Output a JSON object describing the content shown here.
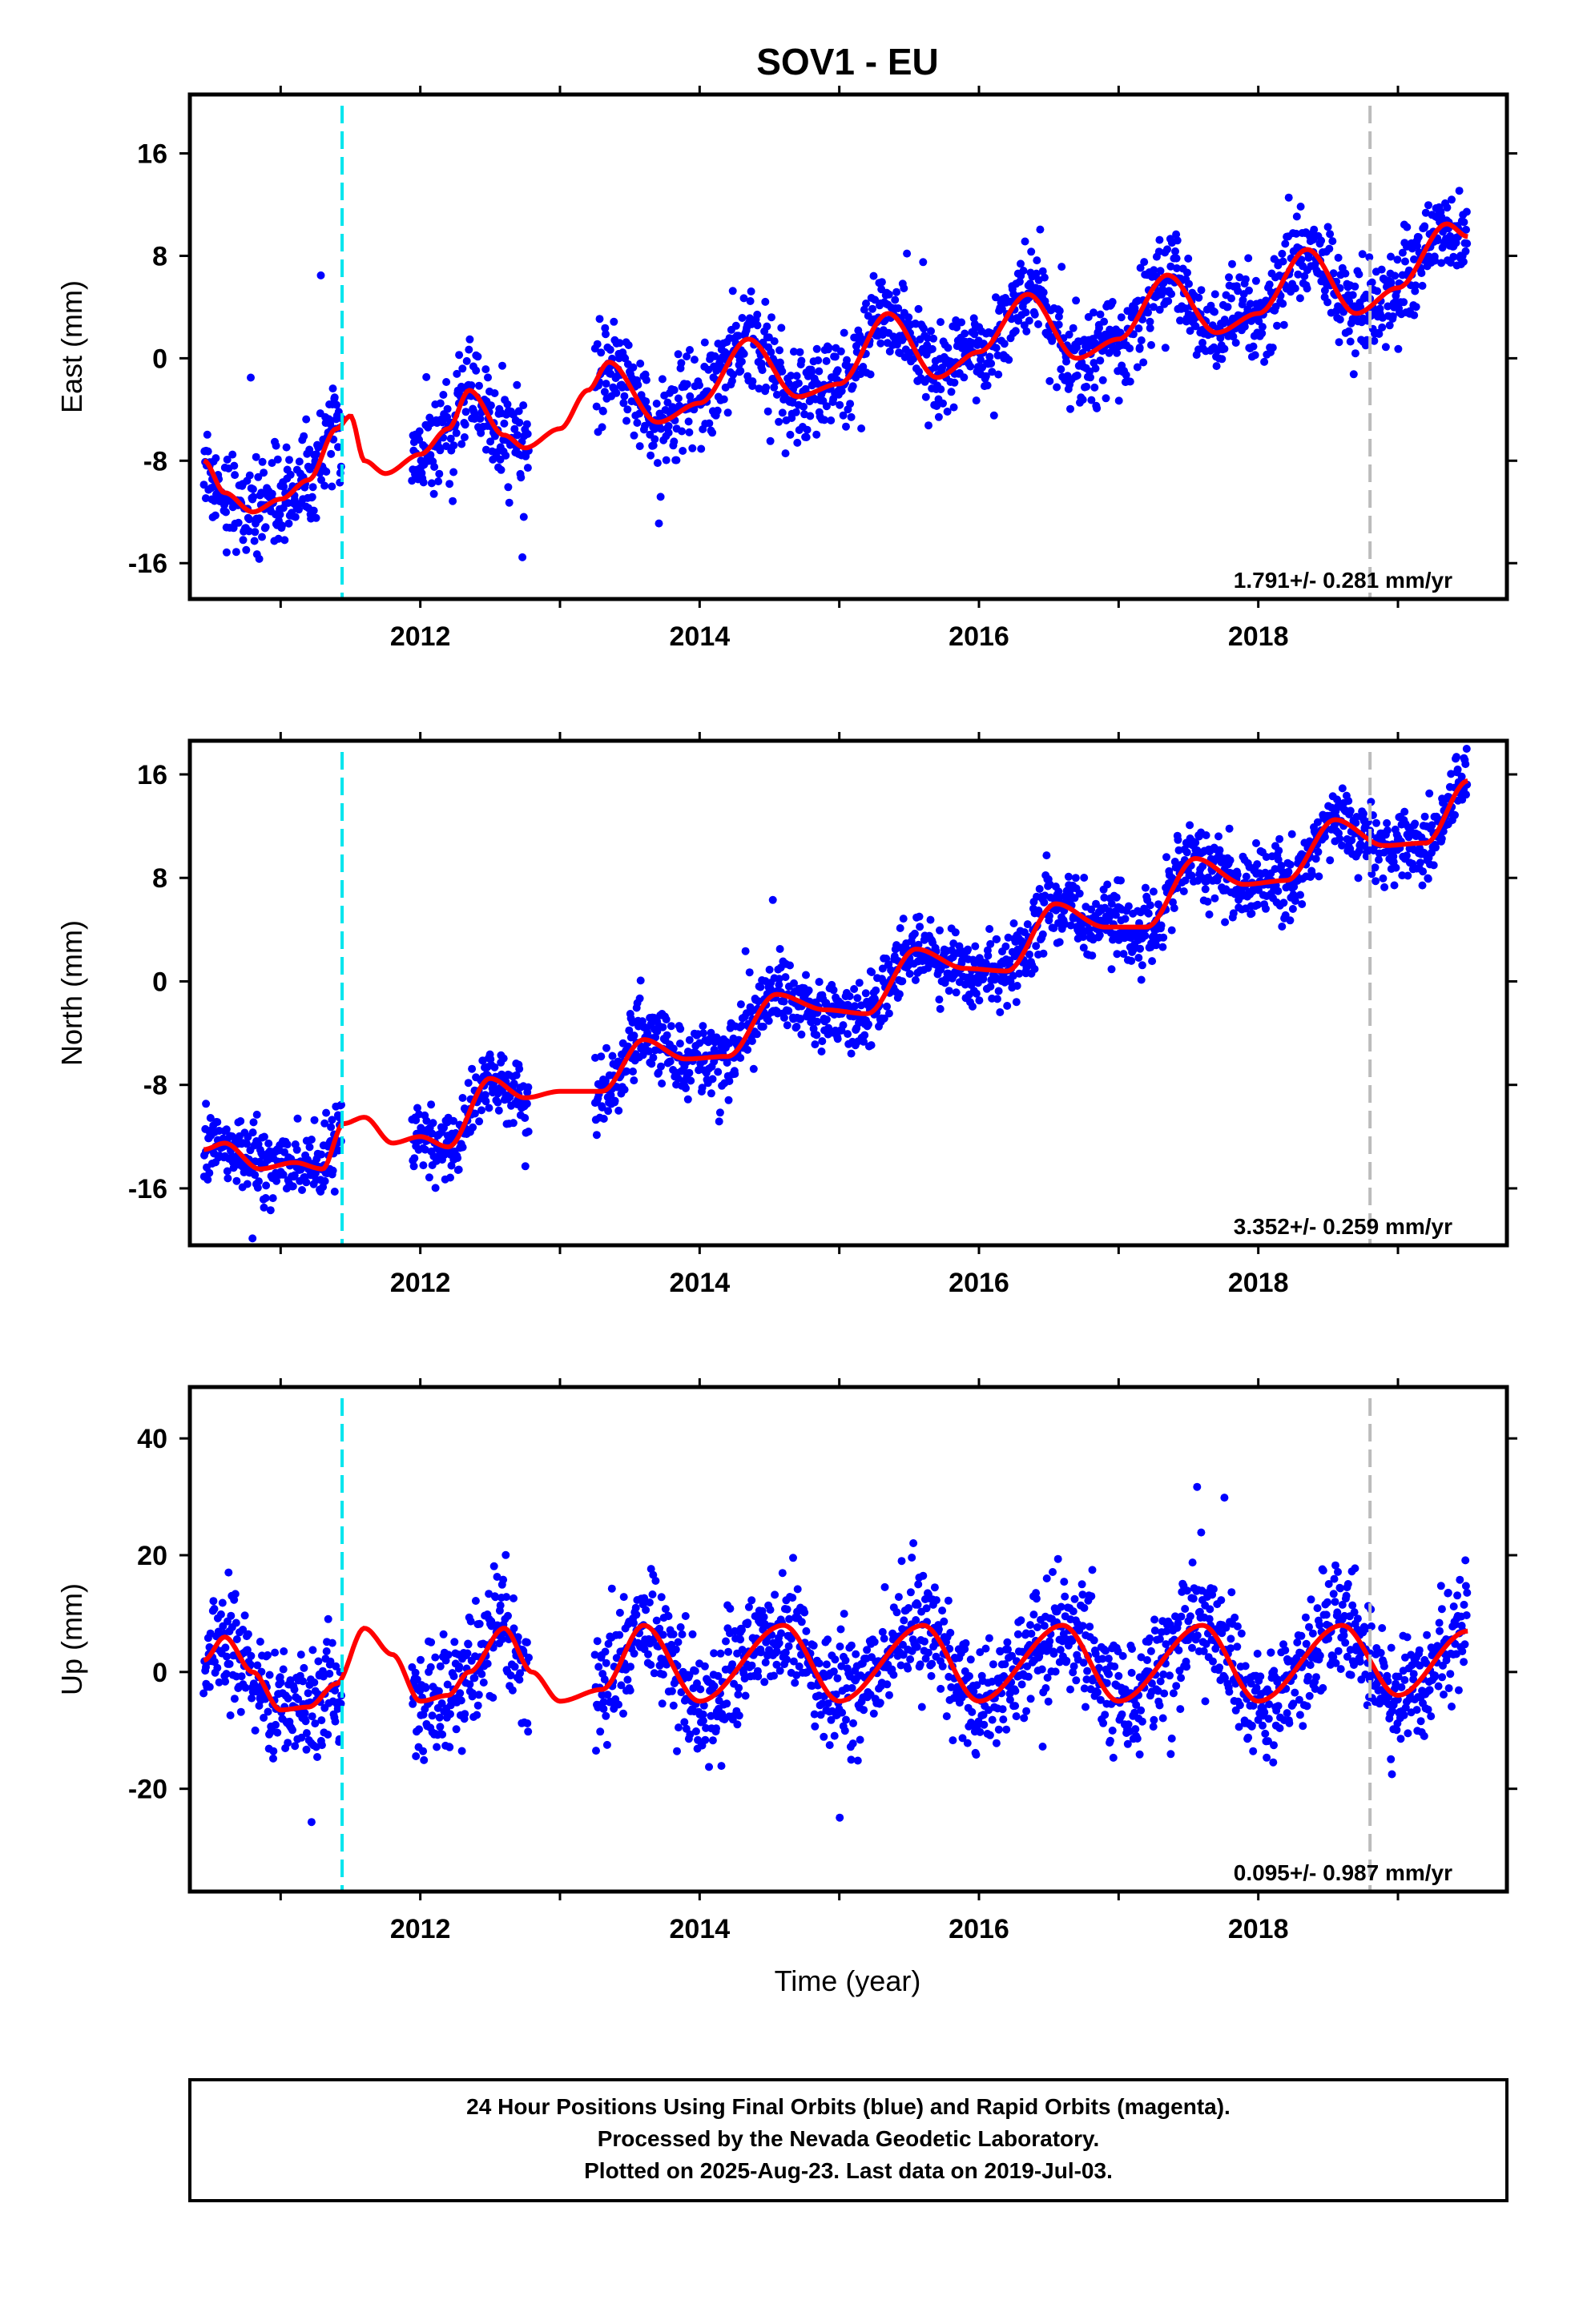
{
  "title": "SOV1 - EU",
  "caption": {
    "line1": "24 Hour Positions Using Final Orbits (blue) and Rapid Orbits (magenta).",
    "line2": "Processed by the Nevada Geodetic Laboratory.",
    "line3": "Plotted on 2025-Aug-23. Last data on 2019-Jul-03."
  },
  "xlabel": "Time (year)",
  "colors": {
    "points": "#0000ff",
    "model": "#ff0000",
    "equipment_change": "#00e5ee",
    "other_event": "#bbbbbb"
  },
  "chart_data": [
    {
      "type": "scatter",
      "ylabel": "East (mm)",
      "xlim": [
        2010.35,
        2019.78
      ],
      "ylim": [
        -18.8,
        20.6
      ],
      "xticks": [
        "2012",
        "2014",
        "2016",
        "2018"
      ],
      "yticks": [
        "16",
        "8",
        "0",
        "-8",
        "-16"
      ],
      "rate_label": "1.791+/- 0.281 mm/yr",
      "velocity_mm_yr": 1.791,
      "event_lines": [
        {
          "x": 2011.44,
          "kind": "equipment"
        },
        {
          "x": 2018.8,
          "kind": "other"
        }
      ],
      "data_spans": [
        [
          2010.45,
          2011.44
        ],
        [
          2011.94,
          2012.78
        ],
        [
          2013.25,
          2019.5
        ]
      ],
      "model": {
        "x": [
          2010.45,
          2010.6,
          2010.8,
          2011.0,
          2011.2,
          2011.4,
          2011.5,
          2011.6,
          2011.75,
          2012.0,
          2012.2,
          2012.35,
          2012.6,
          2012.75,
          2013.0,
          2013.2,
          2013.35,
          2013.7,
          2014.0,
          2014.35,
          2014.7,
          2015.0,
          2015.35,
          2015.7,
          2016.0,
          2016.35,
          2016.7,
          2017.0,
          2017.35,
          2017.7,
          2018.0,
          2018.35,
          2018.7,
          2019.0,
          2019.35,
          2019.5
        ],
        "y": [
          -8,
          -10.5,
          -12,
          -11,
          -9.5,
          -5.5,
          -4.5,
          -8,
          -9,
          -7.5,
          -5.5,
          -2.5,
          -6,
          -7,
          -5.5,
          -2.5,
          -0.3,
          -5,
          -3.5,
          1.5,
          -3,
          -2,
          3.5,
          -1.5,
          0.5,
          5,
          0,
          1.5,
          6.5,
          2,
          3.5,
          8.5,
          3.5,
          5.5,
          10.5,
          9.5
        ]
      },
      "scatter_sd": 1.8
    },
    {
      "type": "scatter",
      "ylabel": "North (mm)",
      "xlim": [
        2010.35,
        2019.78
      ],
      "ylim": [
        -20.4,
        18.6
      ],
      "xticks": [
        "2012",
        "2014",
        "2016",
        "2018"
      ],
      "yticks": [
        "16",
        "8",
        "0",
        "-8",
        "-16"
      ],
      "rate_label": "3.352+/- 0.259 mm/yr",
      "velocity_mm_yr": 3.352,
      "event_lines": [
        {
          "x": 2011.44,
          "kind": "equipment"
        },
        {
          "x": 2018.8,
          "kind": "other"
        }
      ],
      "data_spans": [
        [
          2010.45,
          2011.44
        ],
        [
          2011.94,
          2012.78
        ],
        [
          2013.25,
          2019.5
        ]
      ],
      "model": {
        "x": [
          2010.45,
          2010.6,
          2010.85,
          2011.1,
          2011.3,
          2011.45,
          2011.6,
          2011.8,
          2012.0,
          2012.2,
          2012.5,
          2012.75,
          2013.0,
          2013.3,
          2013.6,
          2013.9,
          2014.2,
          2014.55,
          2014.9,
          2015.2,
          2015.55,
          2015.9,
          2016.2,
          2016.55,
          2016.9,
          2017.2,
          2017.55,
          2017.9,
          2018.2,
          2018.55,
          2018.9,
          2019.2,
          2019.5
        ],
        "y": [
          -13,
          -12.5,
          -14.5,
          -14,
          -14.5,
          -11,
          -10.5,
          -12.5,
          -12,
          -12.8,
          -7.5,
          -9,
          -8.5,
          -8.5,
          -4.5,
          -6,
          -5.8,
          -1,
          -2.2,
          -2.5,
          2.5,
          1,
          0.8,
          6,
          4.2,
          4.2,
          9.5,
          7.5,
          7.8,
          12.5,
          10.5,
          10.7,
          15.5
        ]
      },
      "scatter_sd": 1.4
    },
    {
      "type": "scatter",
      "ylabel": "Up (mm)",
      "xlim": [
        2010.35,
        2019.78
      ],
      "ylim": [
        -37.6,
        48.8
      ],
      "xticks": [
        "2012",
        "2014",
        "2016",
        "2018"
      ],
      "yticks": [
        "40",
        "20",
        "0",
        "-20"
      ],
      "rate_label": "0.095+/- 0.987 mm/yr",
      "velocity_mm_yr": 0.095,
      "event_lines": [
        {
          "x": 2011.44,
          "kind": "equipment"
        },
        {
          "x": 2018.8,
          "kind": "other"
        }
      ],
      "data_spans": [
        [
          2010.45,
          2011.44
        ],
        [
          2011.94,
          2012.78
        ],
        [
          2013.25,
          2019.5
        ]
      ],
      "model": {
        "x": [
          2010.45,
          2010.6,
          2010.8,
          2011.0,
          2011.2,
          2011.4,
          2011.6,
          2011.8,
          2012.0,
          2012.2,
          2012.35,
          2012.6,
          2012.8,
          2013.0,
          2013.3,
          2013.6,
          2014.0,
          2014.6,
          2015.0,
          2015.6,
          2016.0,
          2016.6,
          2017.0,
          2017.6,
          2018.0,
          2018.6,
          2019.0,
          2019.5
        ],
        "y": [
          2,
          6,
          0,
          -6.5,
          -6,
          -2,
          7.5,
          3,
          -5,
          -4,
          0,
          7.5,
          0,
          -5,
          -3,
          8,
          -5,
          8,
          -5,
          8,
          -5,
          8,
          -5,
          8,
          -5,
          8,
          -4,
          7
        ]
      },
      "scatter_sd": 5.0
    }
  ]
}
